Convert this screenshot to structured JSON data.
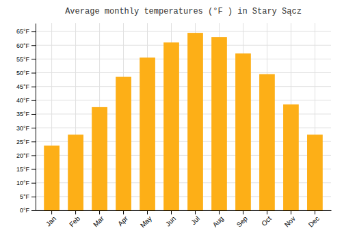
{
  "chart_data": {
    "type": "bar",
    "title": "Average monthly temperatures (°F ) in Stary Sącz",
    "categories": [
      "Jan",
      "Feb",
      "Mar",
      "Apr",
      "May",
      "Jun",
      "Jul",
      "Aug",
      "Sep",
      "Oct",
      "Nov",
      "Dec"
    ],
    "values": [
      23.5,
      27.5,
      37.5,
      48.5,
      55.5,
      61.0,
      64.5,
      63.0,
      57.0,
      49.5,
      38.5,
      27.5
    ],
    "color": "#FDAF17",
    "ylim": [
      0,
      68
    ],
    "yticks": [
      {
        "value": 0,
        "label": "0°F"
      },
      {
        "value": 5,
        "label": "5°F"
      },
      {
        "value": 10,
        "label": "10°F"
      },
      {
        "value": 15,
        "label": "15°F"
      },
      {
        "value": 20,
        "label": "20°F"
      },
      {
        "value": 25,
        "label": "25°F"
      },
      {
        "value": 30,
        "label": "30°F"
      },
      {
        "value": 35,
        "label": "35°F"
      },
      {
        "value": 40,
        "label": "40°F"
      },
      {
        "value": 45,
        "label": "45°F"
      },
      {
        "value": 50,
        "label": "50°F"
      },
      {
        "value": 55,
        "label": "55°F"
      },
      {
        "value": 60,
        "label": "60°F"
      },
      {
        "value": 65,
        "label": "65°F"
      }
    ],
    "grid": true
  }
}
